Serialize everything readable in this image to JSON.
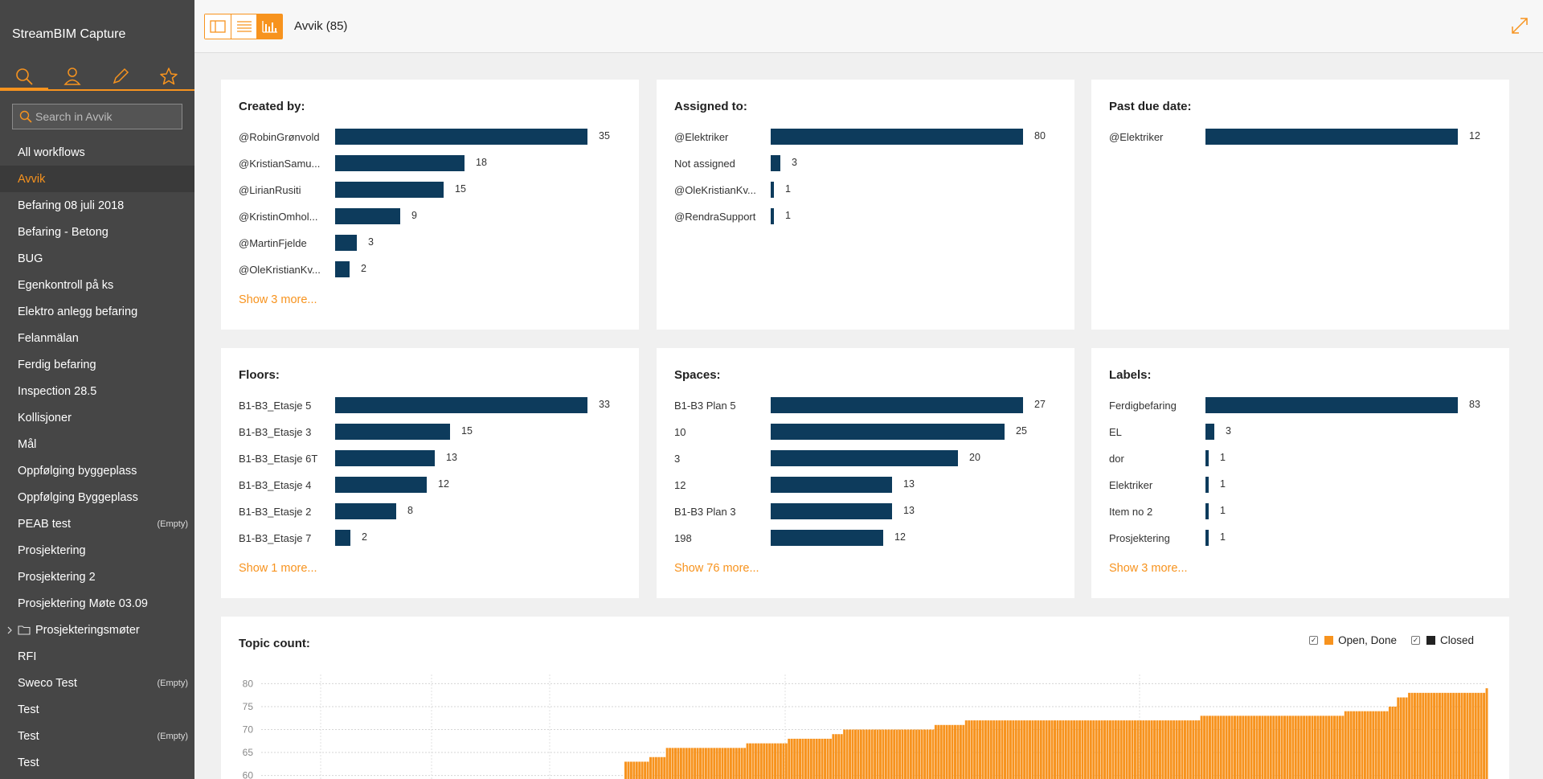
{
  "app": {
    "title": "StreamBIM Capture"
  },
  "sidebar": {
    "search_placeholder": "Search in Avvik",
    "items": [
      {
        "label": "All workflows",
        "empty": ""
      },
      {
        "label": "Avvik",
        "empty": "",
        "active": true
      },
      {
        "label": "Befaring 08 juli 2018",
        "empty": ""
      },
      {
        "label": "Befaring - Betong",
        "empty": ""
      },
      {
        "label": "BUG",
        "empty": ""
      },
      {
        "label": "Egenkontroll på ks",
        "empty": ""
      },
      {
        "label": "Elektro anlegg befaring",
        "empty": ""
      },
      {
        "label": "Felanmälan",
        "empty": ""
      },
      {
        "label": "Ferdig befaring",
        "empty": ""
      },
      {
        "label": "Inspection 28.5",
        "empty": ""
      },
      {
        "label": "Kollisjoner",
        "empty": ""
      },
      {
        "label": "Mål",
        "empty": ""
      },
      {
        "label": "Oppfølging byggeplass",
        "empty": ""
      },
      {
        "label": "Oppfølging Byggeplass",
        "empty": ""
      },
      {
        "label": "PEAB test",
        "empty": "(Empty)"
      },
      {
        "label": "Prosjektering",
        "empty": ""
      },
      {
        "label": "Prosjektering 2",
        "empty": ""
      },
      {
        "label": "Prosjektering Møte 03.09",
        "empty": ""
      },
      {
        "label": "Prosjekteringsmøter",
        "empty": "",
        "folder": true
      },
      {
        "label": "RFI",
        "empty": ""
      },
      {
        "label": "Sweco Test",
        "empty": "(Empty)"
      },
      {
        "label": "Test",
        "empty": ""
      },
      {
        "label": "Test",
        "empty": "(Empty)"
      },
      {
        "label": "Test",
        "empty": ""
      }
    ]
  },
  "header": {
    "title": "Avvik (85)"
  },
  "panels": [
    {
      "title": "Created by:",
      "max": 35,
      "show_more": "Show 3 more...",
      "rows": [
        {
          "label": "@RobinGrønvold",
          "value": 35
        },
        {
          "label": "@KristianSamu...",
          "value": 18
        },
        {
          "label": "@LirianRusiti",
          "value": 15
        },
        {
          "label": "@KristinOmhol...",
          "value": 9
        },
        {
          "label": "@MartinFjelde",
          "value": 3
        },
        {
          "label": "@OleKristianKv...",
          "value": 2
        }
      ]
    },
    {
      "title": "Assigned to:",
      "max": 80,
      "show_more": "",
      "rows": [
        {
          "label": "@Elektriker",
          "value": 80
        },
        {
          "label": "Not assigned",
          "value": 3
        },
        {
          "label": "@OleKristianKv...",
          "value": 1
        },
        {
          "label": "@RendraSupport",
          "value": 1
        }
      ]
    },
    {
      "title": "Past due date:",
      "max": 12,
      "show_more": "",
      "rows": [
        {
          "label": "@Elektriker",
          "value": 12
        }
      ]
    },
    {
      "title": "Floors:",
      "max": 33,
      "show_more": "Show 1 more...",
      "rows": [
        {
          "label": "B1-B3_Etasje 5",
          "value": 33
        },
        {
          "label": "B1-B3_Etasje 3",
          "value": 15
        },
        {
          "label": "B1-B3_Etasje 6T",
          "value": 13
        },
        {
          "label": "B1-B3_Etasje 4",
          "value": 12
        },
        {
          "label": "B1-B3_Etasje 2",
          "value": 8
        },
        {
          "label": "B1-B3_Etasje 7",
          "value": 2
        }
      ]
    },
    {
      "title": "Spaces:",
      "max": 27,
      "show_more": "Show 76 more...",
      "rows": [
        {
          "label": "B1-B3 Plan 5",
          "value": 27
        },
        {
          "label": "10",
          "value": 25
        },
        {
          "label": "3",
          "value": 20
        },
        {
          "label": "12",
          "value": 13
        },
        {
          "label": "B1-B3 Plan 3",
          "value": 13
        },
        {
          "label": "198",
          "value": 12
        }
      ]
    },
    {
      "title": "Labels:",
      "max": 83,
      "show_more": "Show 3 more...",
      "rows": [
        {
          "label": "Ferdigbefaring",
          "value": 83
        },
        {
          "label": "EL",
          "value": 3
        },
        {
          "label": "dor",
          "value": 1
        },
        {
          "label": "Elektriker",
          "value": 1
        },
        {
          "label": "Item no 2",
          "value": 1
        },
        {
          "label": "Prosjektering",
          "value": 1
        }
      ]
    }
  ],
  "topic_count": {
    "title": "Topic count:",
    "legend": [
      {
        "label": "Open, Done",
        "color": "#f7931e",
        "checked": "✓"
      },
      {
        "label": "Closed",
        "color": "#222222",
        "checked": "✓"
      }
    ]
  },
  "chart_data": {
    "type": "area",
    "title": "Topic count:",
    "yticks": [
      60,
      65,
      70,
      75,
      80
    ],
    "ylim": [
      58,
      82
    ],
    "series": [
      {
        "name": "Open, Done",
        "color": "#f7931e",
        "values": [
          63,
          63,
          63,
          63,
          63,
          63,
          63,
          63,
          63,
          64,
          64,
          64,
          64,
          64,
          64,
          66,
          66,
          66,
          66,
          66,
          66,
          66,
          66,
          66,
          66,
          66,
          66,
          66,
          66,
          66,
          66,
          66,
          66,
          66,
          66,
          66,
          66,
          66,
          66,
          66,
          66,
          66,
          66,
          66,
          67,
          67,
          67,
          67,
          67,
          67,
          67,
          67,
          67,
          67,
          67,
          67,
          67,
          67,
          67,
          68,
          68,
          68,
          68,
          68,
          68,
          68,
          68,
          68,
          68,
          68,
          68,
          68,
          68,
          68,
          68,
          69,
          69,
          69,
          69,
          70,
          70,
          70,
          70,
          70,
          70,
          70,
          70,
          70,
          70,
          70,
          70,
          70,
          70,
          70,
          70,
          70,
          70,
          70,
          70,
          70,
          70,
          70,
          70,
          70,
          70,
          70,
          70,
          70,
          70,
          70,
          70,
          70,
          71,
          71,
          71,
          71,
          71,
          71,
          71,
          71,
          71,
          71,
          71,
          72,
          72,
          72,
          72,
          72,
          72,
          72,
          72,
          72,
          72,
          72,
          72,
          72,
          72,
          72,
          72,
          72,
          72,
          72,
          72,
          72,
          72,
          72,
          72,
          72,
          72,
          72,
          72,
          72,
          72,
          72,
          72,
          72,
          72,
          72,
          72,
          72,
          72,
          72,
          72,
          72,
          72,
          72,
          72,
          72,
          72,
          72,
          72,
          72,
          72,
          72,
          72,
          72,
          72,
          72,
          72,
          72,
          72,
          72,
          72,
          72,
          72,
          72,
          72,
          72,
          72,
          72,
          72,
          72,
          72,
          72,
          72,
          72,
          72,
          72,
          72,
          72,
          72,
          72,
          72,
          72,
          72,
          72,
          72,
          72,
          73,
          73,
          73,
          73,
          73,
          73,
          73,
          73,
          73,
          73,
          73,
          73,
          73,
          73,
          73,
          73,
          73,
          73,
          73,
          73,
          73,
          73,
          73,
          73,
          73,
          73,
          73,
          73,
          73,
          73,
          73,
          73,
          73,
          73,
          73,
          73,
          73,
          73,
          73,
          73,
          73,
          73,
          73,
          73,
          73,
          73,
          73,
          73,
          73,
          73,
          73,
          73,
          74,
          74,
          74,
          74,
          74,
          74,
          74,
          74,
          74,
          74,
          74,
          74,
          74,
          74,
          74,
          74,
          75,
          75,
          75,
          77,
          77,
          77,
          77,
          78,
          78,
          78,
          78,
          78,
          78,
          78,
          78,
          78,
          78,
          78,
          78,
          78,
          78,
          78,
          78,
          78,
          78,
          78,
          78,
          78,
          78,
          78,
          78,
          78,
          78,
          78,
          78,
          79
        ]
      }
    ]
  }
}
